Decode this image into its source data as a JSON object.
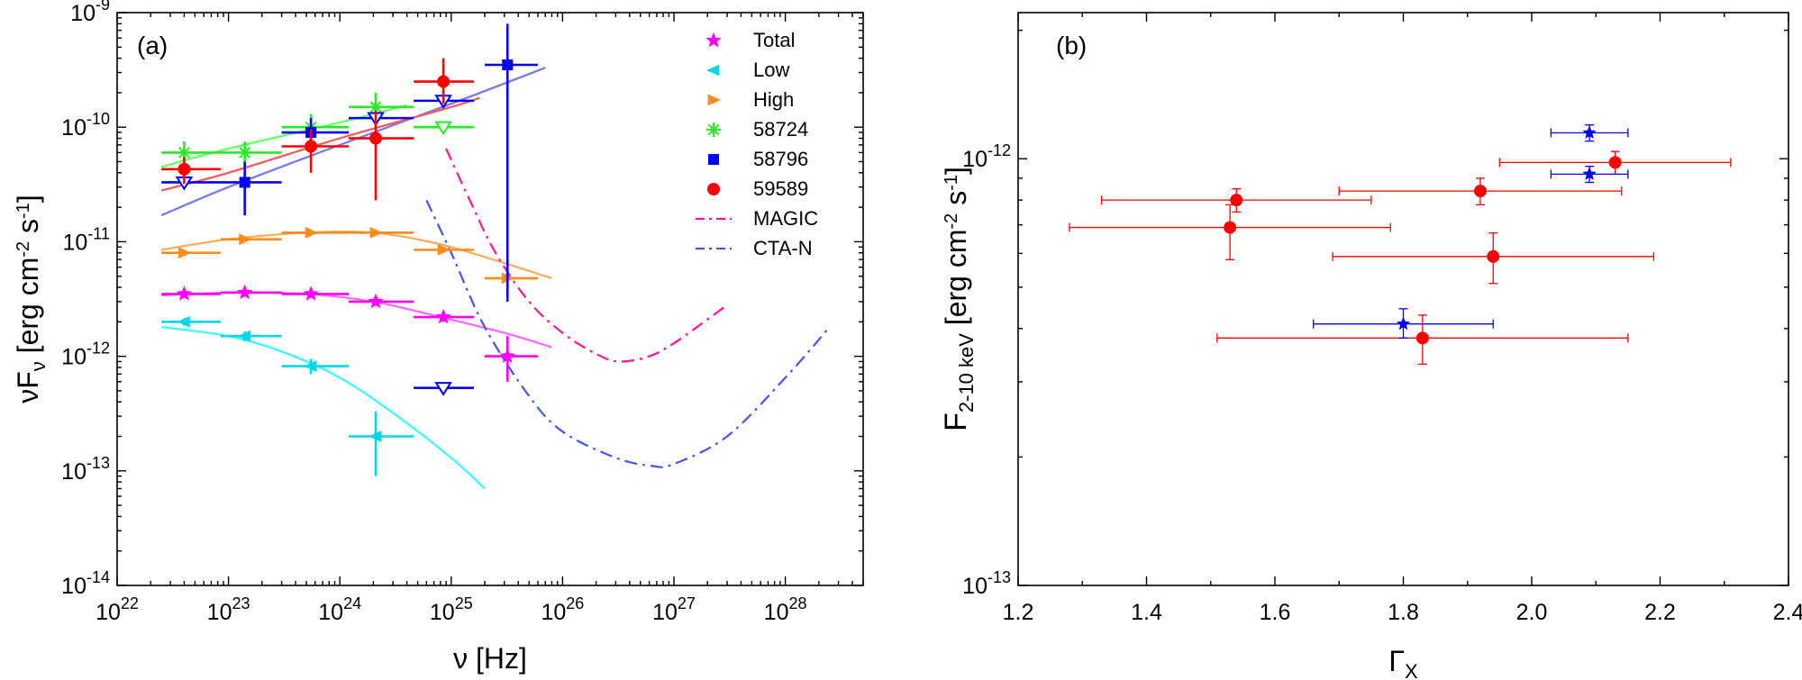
{
  "chart_data": [
    {
      "type": "scatter",
      "panel_label": "(a)",
      "xlabel": "ν [Hz]",
      "ylabel": "νF_ν [erg cm^-2 s^-1]",
      "x_scale": "log",
      "y_scale": "log",
      "xlim": [
        1e+22,
        5e+28
      ],
      "ylim": [
        1e-14,
        1e-09
      ],
      "x_ticks": [
        {
          "base": "10",
          "exp": "22",
          "value": 1e+22
        },
        {
          "base": "10",
          "exp": "23",
          "value": 1e+23
        },
        {
          "base": "10",
          "exp": "24",
          "value": 1e+24
        },
        {
          "base": "10",
          "exp": "25",
          "value": 1e+25
        },
        {
          "base": "10",
          "exp": "26",
          "value": 1e+26
        },
        {
          "base": "10",
          "exp": "27",
          "value": 1e+27
        },
        {
          "base": "10",
          "exp": "28",
          "value": 1e+28
        }
      ],
      "y_ticks": [
        {
          "base": "10",
          "exp": "-14",
          "value": 1e-14
        },
        {
          "base": "10",
          "exp": "-13",
          "value": 1e-13
        },
        {
          "base": "10",
          "exp": "-12",
          "value": 1e-12
        },
        {
          "base": "10",
          "exp": "-11",
          "value": 1e-11
        },
        {
          "base": "10",
          "exp": "-10",
          "value": 1e-10
        },
        {
          "base": "10",
          "exp": "-9",
          "value": 1e-09
        }
      ],
      "legend_position": "top-right",
      "legend": [
        {
          "label": "Total",
          "marker": "star",
          "color": "#ff00ff"
        },
        {
          "label": "Low",
          "marker": "triangle-left",
          "color": "#00d8e8"
        },
        {
          "label": "High",
          "marker": "triangle-right",
          "color": "#ff8c1a"
        },
        {
          "label": "58724",
          "marker": "asterisk",
          "color": "#22ee22"
        },
        {
          "label": "58796",
          "marker": "square",
          "color": "#0000ff"
        },
        {
          "label": "59589",
          "marker": "circle",
          "color": "#ff0000"
        },
        {
          "label": "MAGIC",
          "marker": "dashdot",
          "color": "#ff1493"
        },
        {
          "label": "CTA-N",
          "marker": "dashdot",
          "color": "#4455ee"
        }
      ],
      "series": [
        {
          "name": "Total",
          "marker": "star",
          "color": "#ff00ff",
          "points": [
            {
              "x": 4e+22,
              "y": 3.5e-12,
              "xlo": 2.5e+22,
              "xhi": 8.5e+22,
              "ylo": 3.3e-12,
              "yhi": 3.7e-12
            },
            {
              "x": 1.4e+23,
              "y": 3.6e-12,
              "xlo": 8.5e+22,
              "xhi": 3e+23,
              "ylo": 3.4e-12,
              "yhi": 3.8e-12
            },
            {
              "x": 5.5e+23,
              "y": 3.5e-12,
              "xlo": 3e+23,
              "xhi": 1.2e+24,
              "ylo": 3.3e-12,
              "yhi": 3.7e-12
            },
            {
              "x": 2.1e+24,
              "y": 3e-12,
              "xlo": 1.2e+24,
              "xhi": 4.6e+24,
              "ylo": 2.8e-12,
              "yhi": 3.2e-12
            },
            {
              "x": 8.5e+24,
              "y": 2.2e-12,
              "xlo": 4.6e+24,
              "xhi": 1.6e+25,
              "ylo": 2e-12,
              "yhi": 2.4e-12
            },
            {
              "x": 3.2e+25,
              "y": 1e-12,
              "xlo": 2e+25,
              "xhi": 6e+25,
              "ylo": 6e-13,
              "yhi": 1.5e-12
            }
          ]
        },
        {
          "name": "Low",
          "marker": "triangle-left",
          "color": "#00d8e8",
          "points": [
            {
              "x": 4e+22,
              "y": 2e-12,
              "xlo": 2.5e+22,
              "xhi": 8.5e+22,
              "ylo": 1.85e-12,
              "yhi": 2.15e-12
            },
            {
              "x": 1.4e+23,
              "y": 1.5e-12,
              "xlo": 8.5e+22,
              "xhi": 3e+23,
              "ylo": 1.35e-12,
              "yhi": 1.65e-12
            },
            {
              "x": 5.5e+23,
              "y": 8.2e-13,
              "xlo": 3e+23,
              "xhi": 1.2e+24,
              "ylo": 7e-13,
              "yhi": 9.5e-13
            },
            {
              "x": 2.1e+24,
              "y": 2e-13,
              "xlo": 1.2e+24,
              "xhi": 4.6e+24,
              "ylo": 9e-14,
              "yhi": 3.3e-13
            }
          ]
        },
        {
          "name": "High",
          "marker": "triangle-right",
          "color": "#ff8c1a",
          "points": [
            {
              "x": 4e+22,
              "y": 8e-12,
              "xlo": 2.5e+22,
              "xhi": 8.5e+22,
              "ylo": 7.5e-12,
              "yhi": 8.5e-12
            },
            {
              "x": 1.4e+23,
              "y": 1.05e-11,
              "xlo": 8.5e+22,
              "xhi": 3e+23,
              "ylo": 1e-11,
              "yhi": 1.1e-11
            },
            {
              "x": 5.5e+23,
              "y": 1.2e-11,
              "xlo": 3e+23,
              "xhi": 1.2e+24,
              "ylo": 1.15e-11,
              "yhi": 1.25e-11
            },
            {
              "x": 2.1e+24,
              "y": 1.2e-11,
              "xlo": 1.2e+24,
              "xhi": 4.6e+24,
              "ylo": 1.15e-11,
              "yhi": 1.25e-11
            },
            {
              "x": 8.5e+24,
              "y": 8.5e-12,
              "xlo": 4.6e+24,
              "xhi": 1.6e+25,
              "ylo": 8e-12,
              "yhi": 9e-12
            },
            {
              "x": 3.2e+25,
              "y": 4.8e-12,
              "xlo": 2e+25,
              "xhi": 6e+25,
              "ylo": 4e-12,
              "yhi": 5.6e-12
            }
          ]
        },
        {
          "name": "58724",
          "marker": "asterisk",
          "color": "#22ee22",
          "points": [
            {
              "x": 4e+22,
              "y": 6e-11,
              "xlo": 2.5e+22,
              "xhi": 8.5e+22,
              "ylo": 4.5e-11,
              "yhi": 7.5e-11
            },
            {
              "x": 1.4e+23,
              "y": 6e-11,
              "xlo": 8.5e+22,
              "xhi": 3e+23,
              "ylo": 4.5e-11,
              "yhi": 7.5e-11
            },
            {
              "x": 5.5e+23,
              "y": 1e-10,
              "xlo": 3e+23,
              "xhi": 1.2e+24,
              "ylo": 7e-11,
              "yhi": 1.3e-10
            },
            {
              "x": 2.1e+24,
              "y": 1.5e-10,
              "xlo": 1.2e+24,
              "xhi": 4.6e+24,
              "ylo": 1.1e-10,
              "yhi": 2e-10
            }
          ],
          "upper_limits": [
            {
              "x": 8.5e+24,
              "y": 1e-10,
              "xlo": 4.6e+24,
              "xhi": 1.6e+25
            }
          ]
        },
        {
          "name": "58796",
          "marker": "square",
          "color": "#0000ff",
          "points": [
            {
              "x": 1.4e+23,
              "y": 3.3e-11,
              "xlo": 8.5e+22,
              "xhi": 3e+23,
              "ylo": 1.7e-11,
              "yhi": 5e-11
            },
            {
              "x": 5.5e+23,
              "y": 9e-11,
              "xlo": 3e+23,
              "xhi": 1.2e+24,
              "ylo": 6e-11,
              "yhi": 1.2e-10
            },
            {
              "x": 3.2e+25,
              "y": 3.5e-10,
              "xlo": 2e+25,
              "xhi": 6e+25,
              "ylo": 3e-12,
              "yhi": 8e-10
            }
          ],
          "upper_limits": [
            {
              "x": 4e+22,
              "y": 3.3e-11,
              "xlo": 2.5e+22,
              "xhi": 8.5e+22
            },
            {
              "x": 2.1e+24,
              "y": 1.2e-10,
              "xlo": 1.2e+24,
              "xhi": 4.6e+24
            },
            {
              "x": 8.5e+24,
              "y": 1.7e-10,
              "xlo": 4.6e+24,
              "xhi": 1.6e+25
            },
            {
              "x": 8.5e+24,
              "y": 5.3e-13,
              "xlo": 4.6e+24,
              "xhi": 1.6e+25
            }
          ]
        },
        {
          "name": "59589",
          "marker": "circle",
          "color": "#ff0000",
          "points": [
            {
              "x": 4e+22,
              "y": 4.3e-11,
              "xlo": 2.5e+22,
              "xhi": 8.5e+22,
              "ylo": 3.2e-11,
              "yhi": 5.5e-11
            },
            {
              "x": 5.5e+23,
              "y": 6.8e-11,
              "xlo": 3e+23,
              "xhi": 1.2e+24,
              "ylo": 4e-11,
              "yhi": 9.5e-11
            },
            {
              "x": 2.1e+24,
              "y": 8e-11,
              "xlo": 1.2e+24,
              "xhi": 4.6e+24,
              "ylo": 2.3e-11,
              "yhi": 1.4e-10
            },
            {
              "x": 8.5e+24,
              "y": 2.5e-10,
              "xlo": 4.6e+24,
              "xhi": 1.6e+25,
              "ylo": 1.6e-10,
              "yhi": 4e-10
            }
          ]
        }
      ],
      "curves": [
        {
          "name": "Total model",
          "color": "#ff66ff",
          "style": "solid",
          "x": [
            2.5e+22,
            1e+23,
            5e+23,
            2e+24,
            8e+24,
            3e+25,
            8e+25
          ],
          "y": [
            3.4e-12,
            3.6e-12,
            3.5e-12,
            3e-12,
            2.2e-12,
            1.6e-12,
            1.2e-12
          ]
        },
        {
          "name": "Low model",
          "color": "#33ffff",
          "style": "solid",
          "x": [
            2.5e+22,
            1e+23,
            3e+23,
            1e+24,
            3e+24,
            1e+25,
            2e+25
          ],
          "y": [
            1.8e-12,
            1.5e-12,
            1.1e-12,
            6.5e-13,
            3.2e-13,
            1.3e-13,
            7e-14
          ]
        },
        {
          "name": "High model",
          "color": "#ffaa55",
          "style": "solid",
          "x": [
            2.5e+22,
            1e+23,
            5e+23,
            2e+24,
            8e+24,
            3e+25,
            8e+25
          ],
          "y": [
            8.5e-12,
            1.05e-11,
            1.2e-11,
            1.2e-11,
            9.5e-12,
            6.5e-12,
            4.8e-12
          ]
        },
        {
          "name": "58724 model",
          "color": "#66ff66",
          "style": "solid",
          "x": [
            2.5e+22,
            1e+23,
            1e+24,
            4e+24
          ],
          "y": [
            4.5e-11,
            6.5e-11,
            1.1e-10,
            1.55e-10
          ]
        },
        {
          "name": "58796 model",
          "color": "#7777ee",
          "style": "solid",
          "x": [
            2.5e+22,
            1e+23,
            1e+24,
            1e+25,
            7e+25
          ],
          "y": [
            1.7e-11,
            3e-11,
            7e-11,
            1.6e-10,
            3.3e-10
          ]
        },
        {
          "name": "59589 model",
          "color": "#ff5555",
          "style": "solid",
          "x": [
            2.5e+22,
            1e+23,
            1e+24,
            1e+25,
            1.8e+25
          ],
          "y": [
            2.8e-11,
            4e-11,
            8e-11,
            1.5e-10,
            1.8e-10
          ]
        },
        {
          "name": "MAGIC",
          "color": "#ff1493",
          "style": "dashdot",
          "x": [
            9e+24,
            1.5e+25,
            2.5e+25,
            5e+25,
            1e+26,
            2e+26,
            3.2e+26,
            6e+26,
            1e+27,
            2e+27,
            3e+27
          ],
          "y": [
            6.5e-11,
            2.2e-11,
            8e-12,
            3e-12,
            1.6e-12,
            1.05e-12,
            9e-13,
            1e-12,
            1.3e-12,
            2.1e-12,
            2.8e-12
          ]
        },
        {
          "name": "CTA-N",
          "color": "#4455ee",
          "style": "dashdot",
          "x": [
            6e+24,
            1e+25,
            2e+25,
            5e+25,
            1e+26,
            3e+26,
            6.5e+26,
            1e+27,
            3e+27,
            1e+28,
            2.5e+28
          ],
          "y": [
            2.3e-11,
            8e-12,
            1.8e-12,
            4.5e-13,
            2.2e-13,
            1.3e-13,
            1.1e-13,
            1.15e-13,
            2e-13,
            6.5e-13,
            1.8e-12
          ]
        }
      ]
    },
    {
      "type": "scatter",
      "panel_label": "(b)",
      "xlabel": "Γ_X",
      "ylabel": "F_2-10 keV [erg cm^-2 s^-1]",
      "x_scale": "linear",
      "y_scale": "log",
      "xlim": [
        1.2,
        2.4
      ],
      "ylim": [
        1e-13,
        2.2e-12
      ],
      "x_ticks": [
        "1.2",
        "1.4",
        "1.6",
        "1.8",
        "2.0",
        "2.2",
        "2.4"
      ],
      "y_ticks": [
        {
          "base": "10",
          "exp": "-13",
          "value": 1e-13
        },
        {
          "base": "10",
          "exp": "-12",
          "value": 1e-12
        }
      ],
      "series": [
        {
          "name": "red",
          "marker": "circle",
          "color": "#ff0000",
          "points": [
            {
              "x": 1.54,
              "y": 8e-13,
              "xlo": 1.33,
              "xhi": 1.75,
              "ylo": 7.5e-13,
              "yhi": 8.5e-13
            },
            {
              "x": 1.53,
              "y": 6.9e-13,
              "xlo": 1.28,
              "xhi": 1.78,
              "ylo": 5.8e-13,
              "yhi": 7.8e-13
            },
            {
              "x": 1.92,
              "y": 8.4e-13,
              "xlo": 1.7,
              "xhi": 2.14,
              "ylo": 7.8e-13,
              "yhi": 9e-13
            },
            {
              "x": 2.13,
              "y": 9.8e-13,
              "xlo": 1.95,
              "xhi": 2.31,
              "ylo": 9.2e-13,
              "yhi": 1.04e-12
            },
            {
              "x": 1.94,
              "y": 5.9e-13,
              "xlo": 1.69,
              "xhi": 2.19,
              "ylo": 5.1e-13,
              "yhi": 6.7e-13
            },
            {
              "x": 1.83,
              "y": 3.8e-13,
              "xlo": 1.51,
              "xhi": 2.15,
              "ylo": 3.3e-13,
              "yhi": 4.3e-13
            }
          ]
        },
        {
          "name": "blue",
          "marker": "star",
          "color": "#0000ff",
          "points": [
            {
              "x": 2.09,
              "y": 1.15e-12,
              "xlo": 2.03,
              "xhi": 2.15,
              "ylo": 1.1e-12,
              "yhi": 1.2e-12
            },
            {
              "x": 2.09,
              "y": 9.2e-13,
              "xlo": 2.03,
              "xhi": 2.15,
              "ylo": 8.8e-13,
              "yhi": 9.6e-13
            },
            {
              "x": 1.8,
              "y": 4.1e-13,
              "xlo": 1.66,
              "xhi": 1.94,
              "ylo": 3.8e-13,
              "yhi": 4.45e-13
            }
          ]
        }
      ]
    }
  ]
}
